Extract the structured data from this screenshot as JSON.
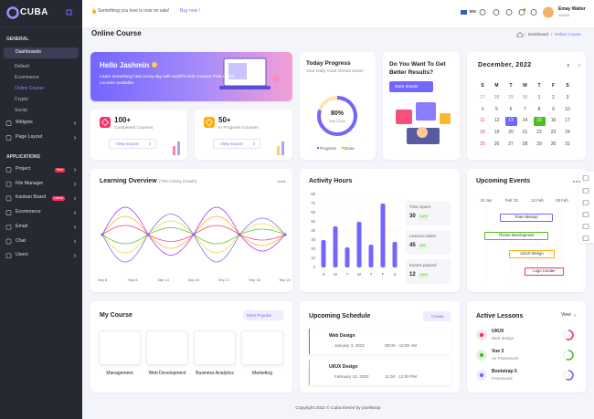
{
  "header": {
    "logo": "CUBA",
    "announcement": "Something you love is now on sale!",
    "announcement_link": "Buy now !",
    "language": "EN",
    "user_name": "Emay Walter",
    "user_role": "ADMIN"
  },
  "sidebar": {
    "sections": [
      {
        "title": "GENERAL",
        "items": [
          {
            "label": "Dashboards",
            "children": [
              "Default",
              "Ecommerce",
              "Online Course",
              "Crypto",
              "Social"
            ]
          },
          {
            "label": "Widgets"
          },
          {
            "label": "Page Layout"
          }
        ]
      },
      {
        "title": "APPLICATIONS",
        "items": [
          {
            "label": "Project",
            "badge": "New"
          },
          {
            "label": "File Manager"
          },
          {
            "label": "Kanban Board",
            "badge": "Latest"
          },
          {
            "label": "Ecommerce"
          },
          {
            "label": "Email"
          },
          {
            "label": "Chat"
          },
          {
            "label": "Users"
          }
        ]
      }
    ]
  },
  "page": {
    "title": "Online Course",
    "breadcrumb": [
      "Dashboard",
      "Online Course"
    ]
  },
  "welcome": {
    "title": "Hello Jashmin",
    "text": "Learn something new every day with world's best courses.Free online courses available."
  },
  "stats": [
    {
      "value": "100+",
      "label": "Completed Courses",
      "button": "View source"
    },
    {
      "value": "50+",
      "label": "In Progress Courses",
      "button": "View source"
    }
  ],
  "today_progress": {
    "title": "Today Progress",
    "subtitle": "Your Daily Goal Almost Done!",
    "donut": {
      "value": 80,
      "label": "80%"
    },
    "donut_caption": "Task Done!",
    "legend": [
      "Progress",
      "Done"
    ]
  },
  "promo": {
    "title": "Do You Want To Get Better Results?",
    "button": "More details"
  },
  "calendar": {
    "title": "December, 2022",
    "weekdays": [
      "S",
      "M",
      "T",
      "W",
      "T",
      "F",
      "S"
    ],
    "days": [
      27,
      28,
      29,
      30,
      1,
      2,
      3,
      4,
      5,
      6,
      7,
      8,
      9,
      10,
      11,
      12,
      13,
      14,
      15,
      16,
      17,
      18,
      19,
      20,
      21,
      22,
      23,
      24,
      25,
      26,
      27,
      28,
      29,
      30,
      31
    ]
  },
  "learning_overview": {
    "title": "Learning Overview",
    "subtitle": "(75% Activity Growth)",
    "x_labels": [
      "Sep 6",
      "Sep 8",
      "Sep 14",
      "Sep 16",
      "Sep 17",
      "Sep 18",
      "Sep 24"
    ]
  },
  "activity_hours": {
    "title": "Activity Hours",
    "days": [
      "S",
      "M",
      "T",
      "W",
      "T",
      "F",
      "S"
    ],
    "values": [
      30,
      45,
      22,
      50,
      25,
      70,
      28
    ],
    "ylim": [
      0,
      80
    ],
    "yticks": [
      0,
      10,
      20,
      30,
      40,
      50,
      60,
      70,
      80
    ],
    "stats": [
      {
        "label": "Time Spent",
        "value": 30,
        "change": "14%"
      },
      {
        "label": "Lessons taken",
        "value": 45,
        "change": "8%"
      },
      {
        "label": "Exams passed",
        "value": 12,
        "change": "10%"
      }
    ]
  },
  "upcoming_events": {
    "title": "Upcoming Events",
    "dates": [
      "10 Jan",
      "Feb '22",
      "12 Feb",
      "25 Feb"
    ],
    "events": [
      {
        "name": "Team Meetup",
        "color": "#7366ff"
      },
      {
        "name": "Theme Development",
        "color": "#51bb25"
      },
      {
        "name": "UI/UX Design",
        "color": "#ffaa05"
      },
      {
        "name": "Logo Creater",
        "color": "#f73164"
      }
    ]
  },
  "my_course": {
    "title": "My Course",
    "filter": "Most Popular",
    "courses": [
      "Management",
      "Web Development",
      "Business Analytics",
      "Marketing"
    ]
  },
  "schedule": {
    "title": "Upcoming Schedule",
    "button": "Create",
    "items": [
      {
        "title": "Web Design",
        "date": "January 3, 2022",
        "time": "09:00 - 12:00 AM"
      },
      {
        "title": "UI/UX Design",
        "date": "February 10, 2022",
        "time": "11:00 - 12:00 PM"
      }
    ]
  },
  "active_lessons": {
    "title": "Active Lessons",
    "link": "View",
    "items": [
      {
        "title": "UI/UX",
        "subtitle": "Web design"
      },
      {
        "title": "Vue 3",
        "subtitle": "JS Framework"
      },
      {
        "title": "Bootstrap 5",
        "subtitle": "Framework"
      }
    ]
  },
  "footer": "Copyright 2022 © Cuba theme by pixelstrap"
}
